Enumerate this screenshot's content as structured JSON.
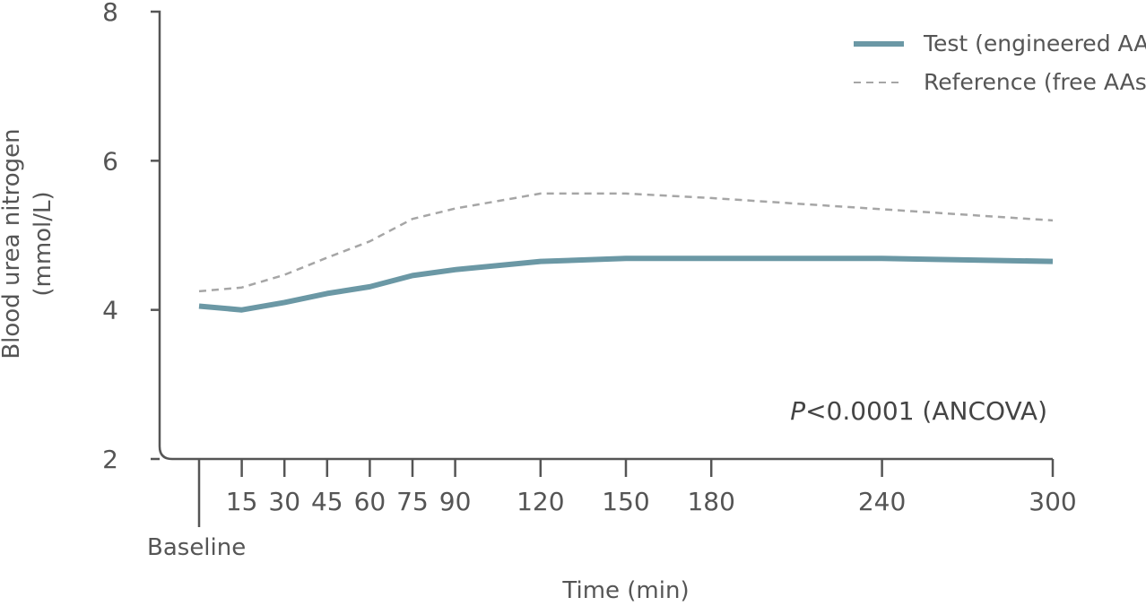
{
  "chart_data": {
    "type": "line",
    "x": [
      0,
      15,
      30,
      45,
      60,
      75,
      90,
      120,
      150,
      180,
      240,
      300
    ],
    "x_tick_labels": [
      "Baseline",
      "15",
      "30",
      "45",
      "60",
      "75",
      "90",
      "120",
      "150",
      "180",
      "240",
      "300"
    ],
    "xlabel": "Time (min)",
    "ylabel_line1": "Blood urea nitrogen",
    "ylabel_line2": "(mmol/L)",
    "ylim": [
      2,
      8
    ],
    "y_ticks": [
      2,
      4,
      6,
      8
    ],
    "series": [
      {
        "name": "Test (engineered AAs)",
        "color": "#6b98a5",
        "style": "solid",
        "values": [
          4.05,
          4.0,
          4.1,
          4.22,
          4.31,
          4.46,
          4.54,
          4.65,
          4.69,
          4.69,
          4.69,
          4.65
        ]
      },
      {
        "name": "Reference (free AAs)",
        "color": "#a6a6a6",
        "style": "dashed",
        "values": [
          4.25,
          4.3,
          4.47,
          4.7,
          4.92,
          5.22,
          5.36,
          5.56,
          5.56,
          5.5,
          5.35,
          5.2
        ]
      }
    ],
    "legend_position": "top-right",
    "annotation": {
      "p_symbol": "P",
      "rest": "<0.0001 (ANCOVA)"
    },
    "grid": false
  }
}
